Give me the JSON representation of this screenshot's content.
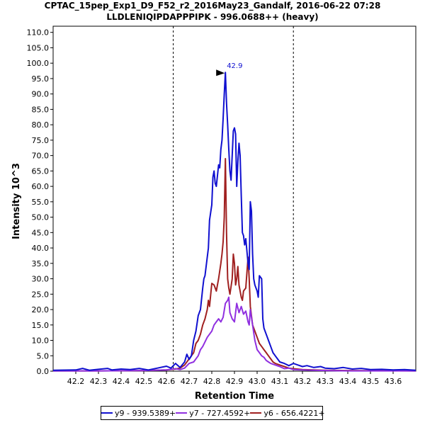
{
  "chart_data": {
    "type": "line",
    "title": "CPTAC_15pep_Exp1_D9_F52_r2_2016May23_Gandalf, 2016-06-22 07:28",
    "subtitle": "LLDLENIQIPDAPPPIPK - 996.0688++ (heavy)",
    "xlabel": "Retention Time",
    "ylabel": "Intensity 10^3",
    "xlim": [
      42.1,
      43.7
    ],
    "ylim": [
      0,
      112
    ],
    "xticks": [
      "42.2",
      "42.3",
      "42.4",
      "42.5",
      "42.6",
      "42.7",
      "42.8",
      "42.9",
      "43.0",
      "43.1",
      "43.2",
      "43.3",
      "43.4",
      "43.5",
      "43.6"
    ],
    "yticks": [
      "0.0",
      "5.0",
      "10.0",
      "15.0",
      "20.0",
      "25.0",
      "30.0",
      "35.0",
      "40.0",
      "45.0",
      "50.0",
      "55.0",
      "60.0",
      "65.0",
      "70.0",
      "75.0",
      "80.0",
      "85.0",
      "90.0",
      "95.0",
      "100.0",
      "105.0",
      "110.0"
    ],
    "boundaries": [
      42.63,
      43.16
    ],
    "peak_annotation": {
      "label": "42.9",
      "x": 42.86,
      "y": 97.0
    },
    "series": [
      {
        "name": "y9 - 939.5389+",
        "color": "#1010d0",
        "points": [
          [
            42.1,
            0.3
          ],
          [
            42.2,
            0.4
          ],
          [
            42.23,
            0.9
          ],
          [
            42.26,
            0.3
          ],
          [
            42.3,
            0.6
          ],
          [
            42.34,
            0.9
          ],
          [
            42.36,
            0.4
          ],
          [
            42.4,
            0.7
          ],
          [
            42.44,
            0.5
          ],
          [
            42.48,
            0.9
          ],
          [
            42.52,
            0.4
          ],
          [
            42.56,
            1.0
          ],
          [
            42.6,
            1.6
          ],
          [
            42.62,
            1.0
          ],
          [
            42.64,
            2.5
          ],
          [
            42.66,
            1.2
          ],
          [
            42.68,
            3.0
          ],
          [
            42.69,
            5.5
          ],
          [
            42.7,
            3.8
          ],
          [
            42.71,
            5.0
          ],
          [
            42.72,
            10.0
          ],
          [
            42.73,
            13.0
          ],
          [
            42.74,
            18.0
          ],
          [
            42.745,
            19.0
          ],
          [
            42.75,
            20.0
          ],
          [
            42.76,
            27.0
          ],
          [
            42.765,
            30.0
          ],
          [
            42.77,
            31.0
          ],
          [
            42.78,
            37.0
          ],
          [
            42.785,
            40.0
          ],
          [
            42.79,
            49.0
          ],
          [
            42.8,
            54.0
          ],
          [
            42.805,
            63.0
          ],
          [
            42.81,
            65.0
          ],
          [
            42.815,
            61.0
          ],
          [
            42.82,
            60.0
          ],
          [
            42.83,
            67.0
          ],
          [
            42.835,
            66.0
          ],
          [
            42.84,
            72.0
          ],
          [
            42.845,
            75.0
          ],
          [
            42.85,
            82.0
          ],
          [
            42.855,
            90.0
          ],
          [
            42.86,
            97.0
          ],
          [
            42.865,
            87.0
          ],
          [
            42.87,
            80.0
          ],
          [
            42.875,
            72.0
          ],
          [
            42.88,
            65.0
          ],
          [
            42.885,
            62.0
          ],
          [
            42.89,
            70.0
          ],
          [
            42.895,
            78.0
          ],
          [
            42.9,
            79.0
          ],
          [
            42.905,
            77.0
          ],
          [
            42.91,
            60.0
          ],
          [
            42.915,
            68.0
          ],
          [
            42.92,
            74.0
          ],
          [
            42.925,
            70.0
          ],
          [
            42.93,
            57.0
          ],
          [
            42.935,
            45.0
          ],
          [
            42.94,
            44.0
          ],
          [
            42.945,
            41.0
          ],
          [
            42.95,
            43.0
          ],
          [
            42.96,
            35.0
          ],
          [
            42.965,
            33.0
          ],
          [
            42.97,
            55.0
          ],
          [
            42.975,
            52.0
          ],
          [
            42.98,
            38.0
          ],
          [
            42.985,
            30.0
          ],
          [
            42.99,
            28.0
          ],
          [
            43.0,
            26.0
          ],
          [
            43.005,
            24.0
          ],
          [
            43.01,
            31.0
          ],
          [
            43.02,
            30.0
          ],
          [
            43.025,
            17.0
          ],
          [
            43.03,
            14.0
          ],
          [
            43.04,
            12.0
          ],
          [
            43.05,
            10.0
          ],
          [
            43.06,
            8.0
          ],
          [
            43.07,
            6.0
          ],
          [
            43.08,
            5.0
          ],
          [
            43.09,
            4.0
          ],
          [
            43.1,
            3.0
          ],
          [
            43.12,
            2.5
          ],
          [
            43.14,
            1.8
          ],
          [
            43.16,
            2.5
          ],
          [
            43.18,
            2.0
          ],
          [
            43.2,
            1.5
          ],
          [
            43.22,
            1.8
          ],
          [
            43.25,
            1.2
          ],
          [
            43.28,
            1.5
          ],
          [
            43.3,
            1.0
          ],
          [
            43.34,
            0.8
          ],
          [
            43.38,
            1.2
          ],
          [
            43.42,
            0.7
          ],
          [
            43.46,
            0.9
          ],
          [
            43.5,
            0.5
          ],
          [
            43.55,
            0.6
          ],
          [
            43.6,
            0.4
          ],
          [
            43.65,
            0.5
          ],
          [
            43.7,
            0.3
          ]
        ]
      },
      {
        "name": "y7 - 727.4592+",
        "color": "#9030e0",
        "points": [
          [
            42.1,
            0.1
          ],
          [
            42.3,
            0.1
          ],
          [
            42.5,
            0.2
          ],
          [
            42.6,
            0.4
          ],
          [
            42.64,
            0.8
          ],
          [
            42.66,
            0.5
          ],
          [
            42.68,
            1.0
          ],
          [
            42.7,
            2.5
          ],
          [
            42.72,
            3.0
          ],
          [
            42.74,
            5.0
          ],
          [
            42.75,
            7.0
          ],
          [
            42.76,
            8.0
          ],
          [
            42.77,
            9.5
          ],
          [
            42.78,
            11.0
          ],
          [
            42.79,
            12.0
          ],
          [
            42.8,
            13.0
          ],
          [
            42.81,
            15.0
          ],
          [
            42.82,
            16.0
          ],
          [
            42.83,
            17.0
          ],
          [
            42.84,
            16.0
          ],
          [
            42.85,
            17.5
          ],
          [
            42.86,
            22.0
          ],
          [
            42.87,
            23.0
          ],
          [
            42.875,
            24.0
          ],
          [
            42.88,
            19.0
          ],
          [
            42.89,
            17.0
          ],
          [
            42.9,
            16.0
          ],
          [
            42.91,
            22.0
          ],
          [
            42.92,
            19.0
          ],
          [
            42.93,
            21.0
          ],
          [
            42.94,
            18.5
          ],
          [
            42.95,
            19.5
          ],
          [
            42.96,
            16.0
          ],
          [
            42.965,
            15.0
          ],
          [
            42.97,
            20.0
          ],
          [
            42.98,
            15.0
          ],
          [
            42.99,
            10.0
          ],
          [
            43.0,
            7.0
          ],
          [
            43.01,
            6.0
          ],
          [
            43.02,
            5.0
          ],
          [
            43.03,
            4.5
          ],
          [
            43.04,
            3.5
          ],
          [
            43.05,
            3.0
          ],
          [
            43.06,
            2.5
          ],
          [
            43.08,
            2.0
          ],
          [
            43.1,
            1.5
          ],
          [
            43.12,
            0.8
          ],
          [
            43.14,
            1.0
          ],
          [
            43.16,
            0.5
          ],
          [
            43.2,
            0.4
          ],
          [
            43.25,
            0.3
          ],
          [
            43.3,
            0.2
          ],
          [
            43.4,
            0.1
          ],
          [
            43.7,
            0.1
          ]
        ]
      },
      {
        "name": "y6 - 656.4221+",
        "color": "#a02020",
        "points": [
          [
            42.1,
            0.1
          ],
          [
            42.3,
            0.1
          ],
          [
            42.5,
            0.2
          ],
          [
            42.6,
            0.4
          ],
          [
            42.64,
            0.7
          ],
          [
            42.66,
            1.0
          ],
          [
            42.68,
            2.0
          ],
          [
            42.7,
            4.0
          ],
          [
            42.72,
            6.0
          ],
          [
            42.73,
            9.0
          ],
          [
            42.74,
            10.0
          ],
          [
            42.75,
            12.0
          ],
          [
            42.76,
            15.0
          ],
          [
            42.77,
            17.0
          ],
          [
            42.78,
            20.0
          ],
          [
            42.785,
            23.0
          ],
          [
            42.79,
            21.0
          ],
          [
            42.8,
            28.5
          ],
          [
            42.81,
            28.0
          ],
          [
            42.82,
            26.0
          ],
          [
            42.83,
            30.0
          ],
          [
            42.84,
            35.0
          ],
          [
            42.845,
            38.0
          ],
          [
            42.85,
            42.0
          ],
          [
            42.855,
            50.0
          ],
          [
            42.86,
            69.0
          ],
          [
            42.865,
            45.0
          ],
          [
            42.87,
            30.0
          ],
          [
            42.875,
            27.0
          ],
          [
            42.88,
            25.0
          ],
          [
            42.89,
            30.0
          ],
          [
            42.895,
            38.0
          ],
          [
            42.9,
            35.0
          ],
          [
            42.905,
            28.0
          ],
          [
            42.91,
            30.0
          ],
          [
            42.915,
            34.0
          ],
          [
            42.92,
            28.0
          ],
          [
            42.93,
            24.0
          ],
          [
            42.935,
            23.0
          ],
          [
            42.94,
            26.0
          ],
          [
            42.95,
            27.0
          ],
          [
            42.96,
            37.0
          ],
          [
            42.965,
            30.0
          ],
          [
            42.97,
            21.0
          ],
          [
            42.975,
            18.0
          ],
          [
            42.98,
            15.0
          ],
          [
            42.99,
            13.0
          ],
          [
            43.0,
            11.0
          ],
          [
            43.01,
            9.0
          ],
          [
            43.02,
            8.0
          ],
          [
            43.03,
            7.0
          ],
          [
            43.04,
            6.0
          ],
          [
            43.05,
            5.0
          ],
          [
            43.06,
            4.0
          ],
          [
            43.07,
            3.0
          ],
          [
            43.08,
            2.5
          ],
          [
            43.1,
            2.0
          ],
          [
            43.12,
            1.5
          ],
          [
            43.14,
            1.0
          ],
          [
            43.16,
            0.8
          ],
          [
            43.2,
            0.5
          ],
          [
            43.25,
            0.4
          ],
          [
            43.3,
            0.3
          ],
          [
            43.4,
            0.2
          ],
          [
            43.7,
            0.1
          ]
        ]
      }
    ]
  }
}
